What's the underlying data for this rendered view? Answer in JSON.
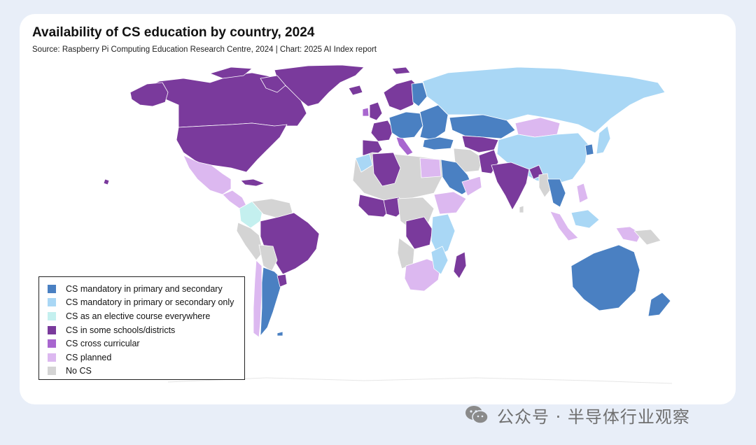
{
  "colors": {
    "mandatory_both": "#4a80c2",
    "mandatory_one": "#a9d7f5",
    "elective": "#c4f0ef",
    "some_schools": "#7a3a9c",
    "cross_curricular": "#a866cf",
    "planned": "#dcb8f0",
    "no_cs": "#d4d4d4",
    "background": "#e8eef8"
  },
  "chart": {
    "title": "Availability of CS education by country, 2024",
    "source": "Source: Raspberry Pi Computing Education Research Centre, 2024 | Chart: 2025 AI Index report"
  },
  "legend": {
    "items": [
      {
        "label": "CS mandatory in primary and secondary",
        "color": "#4a80c2"
      },
      {
        "label": "CS mandatory in primary or secondary only",
        "color": "#a9d7f5"
      },
      {
        "label": "CS as an elective course everywhere",
        "color": "#c4f0ef"
      },
      {
        "label": "CS in some schools/districts",
        "color": "#7a3a9c"
      },
      {
        "label": "CS cross curricular",
        "color": "#a866cf"
      },
      {
        "label": "CS planned",
        "color": "#dcb8f0"
      },
      {
        "label": "No CS",
        "color": "#d4d4d4"
      }
    ]
  },
  "watermark": {
    "text": "公众号 · 半导体行业观察",
    "icon": "wechat-icon"
  }
}
